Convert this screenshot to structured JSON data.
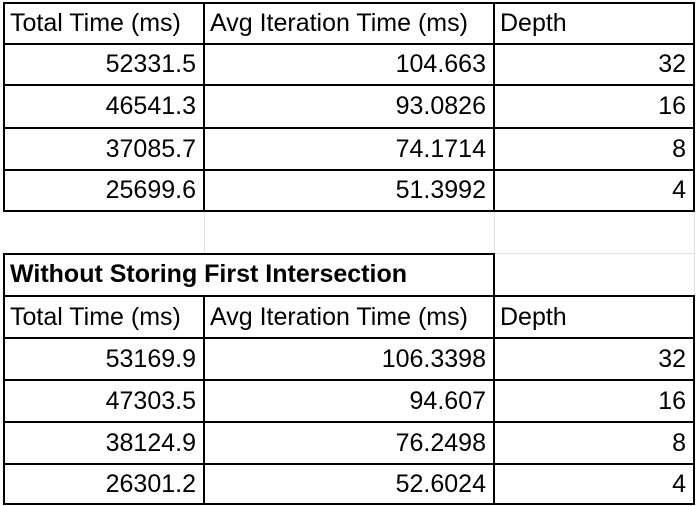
{
  "table1": {
    "headers": [
      "Total Time (ms)",
      "Avg Iteration Time (ms)",
      "Depth"
    ],
    "rows": [
      [
        "52331.5",
        "104.663",
        "32"
      ],
      [
        "46541.3",
        "93.0826",
        "16"
      ],
      [
        "37085.7",
        "74.1714",
        "8"
      ],
      [
        "25699.6",
        "51.3992",
        "4"
      ]
    ]
  },
  "section_title": "Without Storing First Intersection",
  "table2": {
    "headers": [
      "Total Time (ms)",
      "Avg Iteration Time (ms)",
      "Depth"
    ],
    "rows": [
      [
        "53169.9",
        "106.3398",
        "32"
      ],
      [
        "47303.5",
        "94.607",
        "16"
      ],
      [
        "38124.9",
        "76.2498",
        "8"
      ],
      [
        "26301.2",
        "52.6024",
        "4"
      ]
    ]
  }
}
